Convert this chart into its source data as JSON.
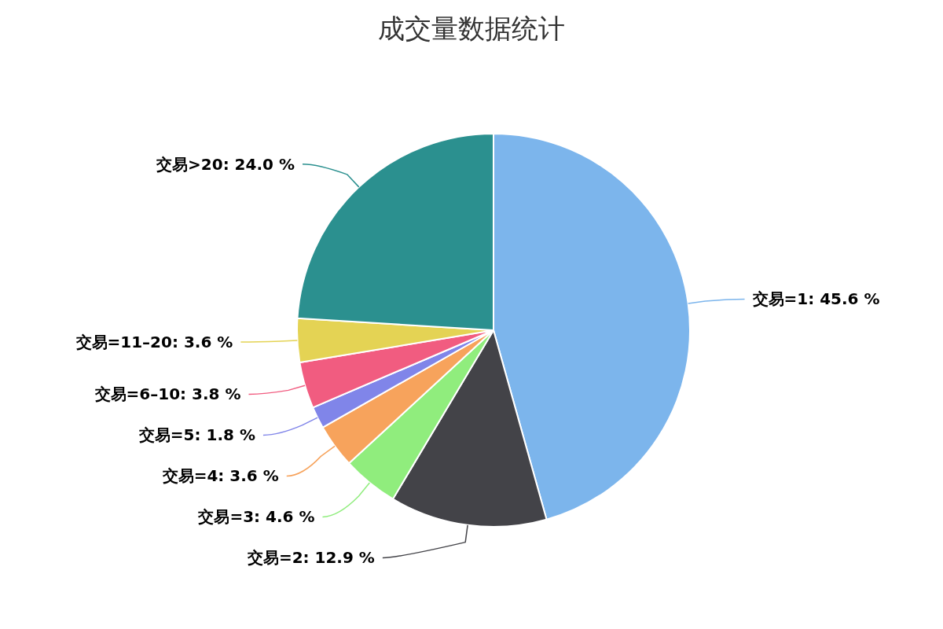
{
  "chart_data": {
    "type": "pie",
    "title": "成交量数据统计",
    "categories": [
      "交易=1",
      "交易=2",
      "交易=3",
      "交易=4",
      "交易=5",
      "交易=6–10",
      "交易=11–20",
      "交易>20"
    ],
    "values": [
      45.6,
      12.9,
      4.6,
      3.6,
      1.8,
      3.8,
      3.6,
      24.0
    ],
    "colors": [
      "#7cb5ec",
      "#434348",
      "#90ed7d",
      "#f7a35c",
      "#8085e9",
      "#f15c80",
      "#e4d354",
      "#2b908f"
    ],
    "value_labels": [
      "45.6 %",
      "12.9 %",
      "4.6 %",
      "3.6 %",
      "1.8 %",
      "3.8 %",
      "3.6 %",
      "24.0 %"
    ]
  }
}
